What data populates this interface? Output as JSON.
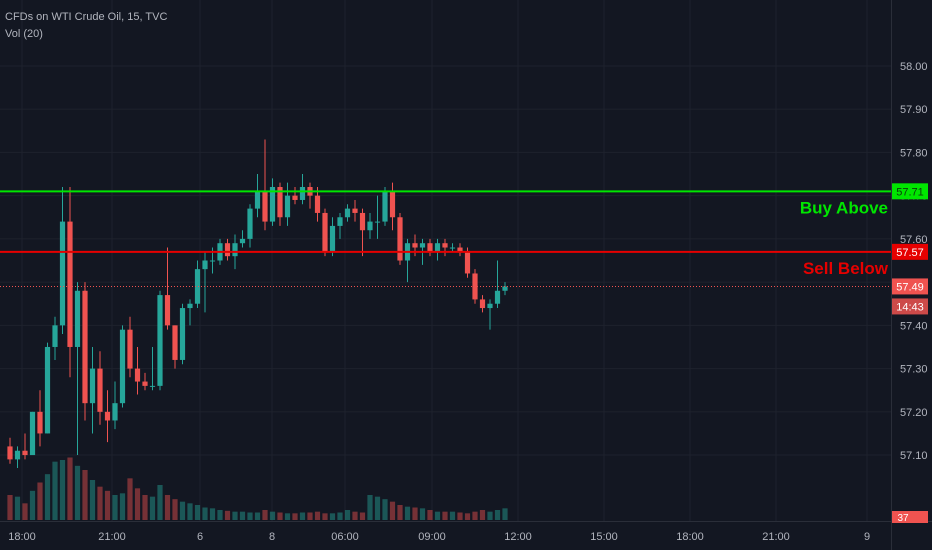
{
  "chart_data": {
    "type": "candlestick",
    "title": "CFDs on WTI Crude Oil, 15, TVC",
    "indicator": "Vol (20)",
    "ylim": [
      57.04,
      58.06
    ],
    "y_ticks": [
      "58.00",
      "57.90",
      "57.80",
      "57.70",
      "57.60",
      "57.50",
      "57.40",
      "57.30",
      "57.20",
      "57.10"
    ],
    "x_ticks": [
      "18:00",
      "21:00",
      "6",
      "8",
      "06:00",
      "09:00",
      "12:00",
      "15:00",
      "18:00",
      "21:00",
      "9"
    ],
    "colors": {
      "up": "#26a69a",
      "down": "#ef5350",
      "background": "#131722",
      "grid": "#1e222d"
    },
    "candles": [
      [
        57.12,
        57.14,
        57.08,
        57.09
      ],
      [
        57.09,
        57.12,
        57.07,
        57.11
      ],
      [
        57.11,
        57.15,
        57.09,
        57.1
      ],
      [
        57.1,
        57.2,
        57.1,
        57.2
      ],
      [
        57.2,
        57.25,
        57.12,
        57.15
      ],
      [
        57.15,
        57.36,
        57.15,
        57.35
      ],
      [
        57.35,
        57.42,
        57.32,
        57.4
      ],
      [
        57.4,
        57.72,
        57.38,
        57.64
      ],
      [
        57.64,
        57.72,
        57.28,
        57.35
      ],
      [
        57.35,
        57.5,
        57.1,
        57.48
      ],
      [
        57.48,
        57.5,
        57.18,
        57.22
      ],
      [
        57.22,
        57.35,
        57.15,
        57.3
      ],
      [
        57.3,
        57.34,
        57.17,
        57.2
      ],
      [
        57.2,
        57.25,
        57.13,
        57.18
      ],
      [
        57.18,
        57.27,
        57.16,
        57.22
      ],
      [
        57.22,
        57.4,
        57.21,
        57.39
      ],
      [
        57.39,
        57.42,
        57.28,
        57.3
      ],
      [
        57.3,
        57.35,
        57.24,
        57.27
      ],
      [
        57.27,
        57.29,
        57.25,
        57.26
      ],
      [
        57.26,
        57.35,
        57.25,
        57.26
      ],
      [
        57.26,
        57.48,
        57.25,
        57.47
      ],
      [
        57.47,
        57.58,
        57.39,
        57.4
      ],
      [
        57.4,
        57.4,
        57.3,
        57.32
      ],
      [
        57.32,
        57.45,
        57.31,
        57.44
      ],
      [
        57.44,
        57.46,
        57.4,
        57.45
      ],
      [
        57.45,
        57.55,
        57.44,
        57.53
      ],
      [
        57.53,
        57.57,
        57.43,
        57.55
      ],
      [
        57.55,
        57.58,
        57.52,
        57.55
      ],
      [
        57.55,
        57.6,
        57.54,
        57.59
      ],
      [
        57.59,
        57.6,
        57.55,
        57.56
      ],
      [
        57.56,
        57.61,
        57.53,
        57.59
      ],
      [
        57.59,
        57.62,
        57.58,
        57.6
      ],
      [
        57.6,
        57.68,
        57.58,
        57.67
      ],
      [
        57.67,
        57.75,
        57.65,
        57.71
      ],
      [
        57.71,
        57.83,
        57.62,
        57.64
      ],
      [
        57.64,
        57.74,
        57.63,
        57.72
      ],
      [
        57.72,
        57.73,
        57.63,
        57.65
      ],
      [
        57.65,
        57.73,
        57.63,
        57.7
      ],
      [
        57.7,
        57.72,
        57.68,
        57.69
      ],
      [
        57.69,
        57.75,
        57.68,
        57.72
      ],
      [
        57.72,
        57.73,
        57.67,
        57.7
      ],
      [
        57.7,
        57.72,
        57.64,
        57.66
      ],
      [
        57.66,
        57.67,
        57.56,
        57.57
      ],
      [
        57.57,
        57.65,
        57.56,
        57.63
      ],
      [
        57.63,
        57.66,
        57.6,
        57.65
      ],
      [
        57.65,
        57.68,
        57.64,
        57.67
      ],
      [
        57.67,
        57.69,
        57.64,
        57.66
      ],
      [
        57.66,
        57.67,
        57.56,
        57.62
      ],
      [
        57.62,
        57.66,
        57.6,
        57.64
      ],
      [
        57.64,
        57.7,
        57.6,
        57.64
      ],
      [
        57.64,
        57.72,
        57.63,
        57.71
      ],
      [
        57.71,
        57.73,
        57.62,
        57.65
      ],
      [
        57.65,
        57.66,
        57.54,
        57.55
      ],
      [
        57.55,
        57.6,
        57.5,
        57.59
      ],
      [
        57.59,
        57.61,
        57.56,
        57.58
      ],
      [
        57.58,
        57.6,
        57.54,
        57.59
      ],
      [
        57.59,
        57.6,
        57.56,
        57.57
      ],
      [
        57.57,
        57.6,
        57.55,
        57.59
      ],
      [
        57.59,
        57.6,
        57.56,
        57.58
      ],
      [
        57.58,
        57.59,
        57.57,
        57.58
      ],
      [
        57.58,
        57.59,
        57.56,
        57.57
      ],
      [
        57.57,
        57.58,
        57.51,
        57.52
      ],
      [
        57.52,
        57.53,
        57.45,
        57.46
      ],
      [
        57.46,
        57.47,
        57.43,
        57.44
      ],
      [
        57.44,
        57.46,
        57.39,
        57.45
      ],
      [
        57.45,
        57.55,
        57.44,
        57.48
      ],
      [
        57.48,
        57.5,
        57.47,
        57.49
      ]
    ],
    "volume": [
      30,
      28,
      20,
      35,
      45,
      55,
      70,
      72,
      75,
      65,
      60,
      48,
      40,
      35,
      30,
      32,
      50,
      38,
      30,
      28,
      42,
      30,
      25,
      22,
      20,
      18,
      15,
      14,
      12,
      11,
      10,
      10,
      9,
      9,
      12,
      10,
      9,
      8,
      8,
      9,
      9,
      10,
      8,
      8,
      9,
      12,
      10,
      9,
      30,
      28,
      25,
      22,
      18,
      16,
      15,
      14,
      12,
      10,
      10,
      10,
      9,
      8,
      10,
      12,
      10,
      12,
      14
    ],
    "volume_scale_max": 120,
    "horizontal_lines": [
      {
        "price": 57.71,
        "label": "Buy Above",
        "badge": "57.71",
        "color": "#00e600"
      },
      {
        "price": 57.57,
        "label": "Sell Below",
        "badge": "57.57",
        "color": "#e60000"
      }
    ],
    "last_price": {
      "price": 57.49,
      "badge": "57.49",
      "countdown": "14:43"
    },
    "volume_badge": "37"
  }
}
